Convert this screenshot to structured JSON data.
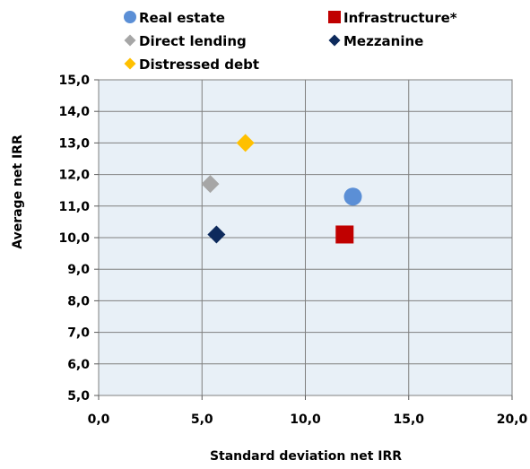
{
  "chart_data": {
    "type": "scatter",
    "title": "",
    "xlabel": "Standard deviation net IRR",
    "ylabel": "Average net IRR",
    "xlim": [
      0,
      20
    ],
    "ylim": [
      5,
      15
    ],
    "x_ticks": [
      "0,0",
      "5,0",
      "10,0",
      "15,0",
      "20,0"
    ],
    "y_ticks": [
      "5,0",
      "6,0",
      "7,0",
      "8,0",
      "9,0",
      "10,0",
      "11,0",
      "12,0",
      "13,0",
      "14,0",
      "15,0"
    ],
    "grid": true,
    "legend_position": "top",
    "plot_background": "#e8f0f7",
    "series": [
      {
        "name": "Real estate",
        "marker": "circle",
        "color": "#5b8fd6",
        "x": [
          12.3
        ],
        "y": [
          11.3
        ]
      },
      {
        "name": "Infrastructure*",
        "marker": "square",
        "color": "#c00000",
        "x": [
          11.9
        ],
        "y": [
          10.1
        ]
      },
      {
        "name": "Direct lending",
        "marker": "diamond",
        "color": "#a6a6a6",
        "x": [
          5.4
        ],
        "y": [
          11.7
        ]
      },
      {
        "name": "Mezzanine",
        "marker": "diamond",
        "color": "#0d2a5c",
        "x": [
          5.7
        ],
        "y": [
          10.1
        ]
      },
      {
        "name": "Distressed debt",
        "marker": "diamond",
        "color": "#ffc000",
        "x": [
          7.1
        ],
        "y": [
          13.0
        ]
      }
    ]
  }
}
